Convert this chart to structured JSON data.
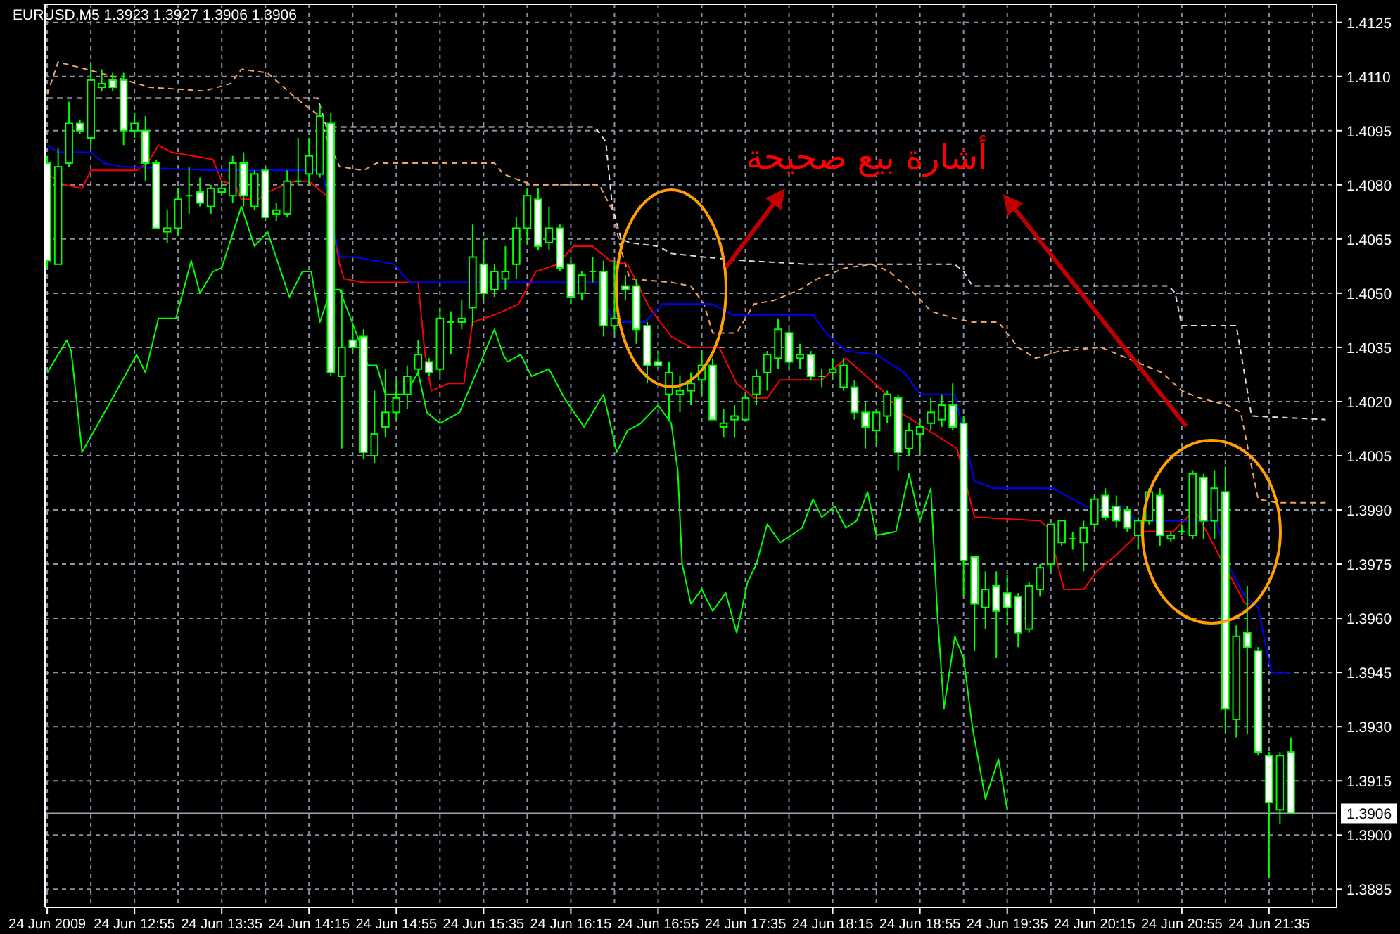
{
  "chart_data": {
    "type": "candlestick",
    "title": "EURUSD,M5  1.3923 1.3927 1.3906 1.3906",
    "annotations": [
      "أشارة بيع صحيحة"
    ],
    "xlim": [
      "2009-06-24T12:14",
      "2009-06-24T22:06"
    ],
    "ylim": [
      1.388,
      1.413
    ],
    "xticks": [
      {
        "value": "2009-06-24T12:15",
        "label": "24 Jun 2009"
      },
      {
        "value": "2009-06-24T12:35",
        "label": null
      },
      {
        "value": "2009-06-24T12:55",
        "label": "24 Jun 12:55"
      },
      {
        "value": "2009-06-24T13:15",
        "label": null
      },
      {
        "value": "2009-06-24T13:35",
        "label": "24 Jun 13:35"
      },
      {
        "value": "2009-06-24T13:55",
        "label": null
      },
      {
        "value": "2009-06-24T14:15",
        "label": "24 Jun 14:15"
      },
      {
        "value": "2009-06-24T14:35",
        "label": null
      },
      {
        "value": "2009-06-24T14:55",
        "label": "24 Jun 14:55"
      },
      {
        "value": "2009-06-24T15:15",
        "label": null
      },
      {
        "value": "2009-06-24T15:35",
        "label": "24 Jun 15:35"
      },
      {
        "value": "2009-06-24T15:55",
        "label": null
      },
      {
        "value": "2009-06-24T16:15",
        "label": "24 Jun 16:15"
      },
      {
        "value": "2009-06-24T16:35",
        "label": null
      },
      {
        "value": "2009-06-24T16:55",
        "label": "24 Jun 16:55"
      },
      {
        "value": "2009-06-24T17:15",
        "label": null
      },
      {
        "value": "2009-06-24T17:35",
        "label": "24 Jun 17:35"
      },
      {
        "value": "2009-06-24T17:55",
        "label": null
      },
      {
        "value": "2009-06-24T18:15",
        "label": "24 Jun 18:15"
      },
      {
        "value": "2009-06-24T18:35",
        "label": null
      },
      {
        "value": "2009-06-24T18:55",
        "label": "24 Jun 18:55"
      },
      {
        "value": "2009-06-24T19:15",
        "label": null
      },
      {
        "value": "2009-06-24T19:35",
        "label": "24 Jun 19:35"
      },
      {
        "value": "2009-06-24T19:55",
        "label": null
      },
      {
        "value": "2009-06-24T20:15",
        "label": "24 Jun 20:15"
      },
      {
        "value": "2009-06-24T20:35",
        "label": null
      },
      {
        "value": "2009-06-24T20:55",
        "label": "24 Jun 20:55"
      },
      {
        "value": "2009-06-24T21:15",
        "label": null
      },
      {
        "value": "2009-06-24T21:35",
        "label": "24 Jun 21:35"
      },
      {
        "value": "2009-06-24T21:55",
        "label": null
      }
    ],
    "yticks": [
      1.3885,
      {
        "value": 1.39,
        "label": "1.3900"
      },
      1.3915,
      {
        "value": 1.393,
        "label": "1.3930"
      },
      1.3945,
      {
        "value": 1.396,
        "label": "1.3960"
      },
      1.3975,
      {
        "value": 1.399,
        "label": "1.3990"
      },
      1.4005,
      {
        "value": 1.402,
        "label": "1.4020"
      },
      1.4035,
      {
        "value": 1.405,
        "label": "1.4050"
      },
      1.4065,
      {
        "value": 1.408,
        "label": "1.4080"
      },
      1.4095,
      {
        "value": 1.411,
        "label": "1.4110"
      },
      1.4125
    ],
    "grid": true,
    "ref_lines": [
      {
        "axis": "y",
        "value": 1.3906,
        "label": "1.3906",
        "color": "#9aa3b4"
      }
    ],
    "x": [
      "2009-06-24T12:15",
      "2009-06-24T12:20",
      "2009-06-24T12:25",
      "2009-06-24T12:30",
      "2009-06-24T12:35",
      "2009-06-24T12:40",
      "2009-06-24T12:45",
      "2009-06-24T12:50",
      "2009-06-24T12:55",
      "2009-06-24T13:00",
      "2009-06-24T13:05",
      "2009-06-24T13:10",
      "2009-06-24T13:15",
      "2009-06-24T13:20",
      "2009-06-24T13:25",
      "2009-06-24T13:30",
      "2009-06-24T13:35",
      "2009-06-24T13:40",
      "2009-06-24T13:45",
      "2009-06-24T13:50",
      "2009-06-24T13:55",
      "2009-06-24T14:00",
      "2009-06-24T14:05",
      "2009-06-24T14:10",
      "2009-06-24T14:15",
      "2009-06-24T14:20",
      "2009-06-24T14:25",
      "2009-06-24T14:30",
      "2009-06-24T14:35",
      "2009-06-24T14:40",
      "2009-06-24T14:45",
      "2009-06-24T14:50",
      "2009-06-24T14:55",
      "2009-06-24T15:00",
      "2009-06-24T15:05",
      "2009-06-24T15:10",
      "2009-06-24T15:15",
      "2009-06-24T15:20",
      "2009-06-24T15:25",
      "2009-06-24T15:30",
      "2009-06-24T15:35",
      "2009-06-24T15:40",
      "2009-06-24T15:45",
      "2009-06-24T15:50",
      "2009-06-24T15:55",
      "2009-06-24T16:00",
      "2009-06-24T16:05",
      "2009-06-24T16:10",
      "2009-06-24T16:15",
      "2009-06-24T16:20",
      "2009-06-24T16:25",
      "2009-06-24T16:30",
      "2009-06-24T16:35",
      "2009-06-24T16:40",
      "2009-06-24T16:45",
      "2009-06-24T16:50",
      "2009-06-24T16:55",
      "2009-06-24T17:00",
      "2009-06-24T17:05",
      "2009-06-24T17:10",
      "2009-06-24T17:15",
      "2009-06-24T17:20",
      "2009-06-24T17:25",
      "2009-06-24T17:30",
      "2009-06-24T17:35",
      "2009-06-24T17:40",
      "2009-06-24T17:45",
      "2009-06-24T17:50",
      "2009-06-24T17:55",
      "2009-06-24T18:00",
      "2009-06-24T18:05",
      "2009-06-24T18:10",
      "2009-06-24T18:15",
      "2009-06-24T18:20",
      "2009-06-24T18:25",
      "2009-06-24T18:30",
      "2009-06-24T18:35",
      "2009-06-24T18:40",
      "2009-06-24T18:45",
      "2009-06-24T18:50",
      "2009-06-24T18:55",
      "2009-06-24T19:00",
      "2009-06-24T19:05",
      "2009-06-24T19:10",
      "2009-06-24T19:15",
      "2009-06-24T19:20",
      "2009-06-24T19:25",
      "2009-06-24T19:30",
      "2009-06-24T19:35",
      "2009-06-24T19:40",
      "2009-06-24T19:45",
      "2009-06-24T19:50",
      "2009-06-24T19:55",
      "2009-06-24T20:00",
      "2009-06-24T20:05",
      "2009-06-24T20:10",
      "2009-06-24T20:15",
      "2009-06-24T20:20",
      "2009-06-24T20:25",
      "2009-06-24T20:30",
      "2009-06-24T20:35",
      "2009-06-24T20:40",
      "2009-06-24T20:45",
      "2009-06-24T20:50",
      "2009-06-24T20:55",
      "2009-06-24T21:00",
      "2009-06-24T21:05",
      "2009-06-24T21:10",
      "2009-06-24T21:15",
      "2009-06-24T21:20",
      "2009-06-24T21:25",
      "2009-06-24T21:30",
      "2009-06-24T21:35",
      "2009-06-24T21:40",
      "2009-06-24T21:45"
    ],
    "ohlc": [
      [
        1.4086,
        1.4088,
        1.4057,
        1.4059
      ],
      [
        1.4058,
        1.409,
        1.4058,
        1.4085
      ],
      [
        1.4086,
        1.4103,
        1.4085,
        1.4097
      ],
      [
        1.4097,
        1.4098,
        1.4094,
        1.4095
      ],
      [
        1.4093,
        1.4114,
        1.409,
        1.4109
      ],
      [
        1.4107,
        1.4112,
        1.4106,
        1.4108
      ],
      [
        1.4109,
        1.4111,
        1.4106,
        1.4107
      ],
      [
        1.4109,
        1.4111,
        1.4091,
        1.4095
      ],
      [
        1.4095,
        1.41,
        1.4093,
        1.4097
      ],
      [
        1.4095,
        1.4099,
        1.4081,
        1.4086
      ],
      [
        1.4086,
        1.4087,
        1.4068,
        1.4068
      ],
      [
        1.4067,
        1.4073,
        1.4064,
        1.4068
      ],
      [
        1.4068,
        1.4079,
        1.4066,
        1.4076
      ],
      [
        1.4077,
        1.4085,
        1.4072,
        1.4077
      ],
      [
        1.4078,
        1.4082,
        1.4074,
        1.4075
      ],
      [
        1.4074,
        1.408,
        1.4072,
        1.4079
      ],
      [
        1.4078,
        1.4081,
        1.4077,
        1.4079
      ],
      [
        1.4077,
        1.4088,
        1.4075,
        1.4086
      ],
      [
        1.4086,
        1.4089,
        1.4074,
        1.4077
      ],
      [
        1.4074,
        1.4084,
        1.4073,
        1.4083
      ],
      [
        1.4084,
        1.4085,
        1.407,
        1.4071
      ],
      [
        1.4072,
        1.4075,
        1.407,
        1.4073
      ],
      [
        1.4072,
        1.4084,
        1.4071,
        1.4081
      ],
      [
        1.4081,
        1.4093,
        1.408,
        1.4081
      ],
      [
        1.4083,
        1.4093,
        1.408,
        1.4088
      ],
      [
        1.4083,
        1.4102,
        1.4082,
        1.4099
      ],
      [
        1.4097,
        1.41,
        1.4027,
        1.4028
      ],
      [
        1.4027,
        1.4051,
        1.4007,
        1.4035
      ],
      [
        1.4037,
        1.4041,
        1.4034,
        1.4035
      ],
      [
        1.4038,
        1.404,
        1.4004,
        1.4006
      ],
      [
        1.4005,
        1.4023,
        1.4003,
        1.4011
      ],
      [
        1.4013,
        1.4029,
        1.401,
        1.4017
      ],
      [
        1.4017,
        1.4026,
        1.4015,
        1.4021
      ],
      [
        1.4022,
        1.403,
        1.4018,
        1.4027
      ],
      [
        1.4029,
        1.4037,
        1.4027,
        1.4033
      ],
      [
        1.4031,
        1.4032,
        1.4027,
        1.4028
      ],
      [
        1.4029,
        1.4046,
        1.4027,
        1.4043
      ],
      [
        1.4042,
        1.4045,
        1.4033,
        1.4042
      ],
      [
        1.4042,
        1.4048,
        1.404,
        1.4043
      ],
      [
        1.4046,
        1.4069,
        1.4041,
        1.406
      ],
      [
        1.4058,
        1.4065,
        1.4048,
        1.405
      ],
      [
        1.4051,
        1.4058,
        1.4049,
        1.4056
      ],
      [
        1.4054,
        1.4063,
        1.4051,
        1.4056
      ],
      [
        1.4058,
        1.4071,
        1.4054,
        1.4068
      ],
      [
        1.4068,
        1.4079,
        1.4064,
        1.4077
      ],
      [
        1.4076,
        1.4079,
        1.4062,
        1.4063
      ],
      [
        1.4064,
        1.4074,
        1.4062,
        1.4068
      ],
      [
        1.4068,
        1.4069,
        1.4056,
        1.4057
      ],
      [
        1.4058,
        1.4059,
        1.4047,
        1.4049
      ],
      [
        1.405,
        1.4056,
        1.4048,
        1.4055
      ],
      [
        1.4056,
        1.406,
        1.4053,
        1.4056
      ],
      [
        1.4056,
        1.4059,
        1.4038,
        1.4041
      ],
      [
        1.4041,
        1.4059,
        1.4039,
        1.4043
      ],
      [
        1.4052,
        1.4055,
        1.4048,
        1.4051
      ],
      [
        1.4052,
        1.4054,
        1.4036,
        1.404
      ],
      [
        1.4041,
        1.4042,
        1.4025,
        1.403
      ],
      [
        1.4031,
        1.4034,
        1.4029,
        1.403
      ],
      [
        1.4022,
        1.4031,
        1.4015,
        1.4028
      ],
      [
        1.4022,
        1.4027,
        1.4017,
        1.4023
      ],
      [
        1.4023,
        1.4028,
        1.4019,
        1.4025
      ],
      [
        1.4026,
        1.4034,
        1.4022,
        1.403
      ],
      [
        1.403,
        1.4032,
        1.4015,
        1.4015
      ],
      [
        1.4013,
        1.4018,
        1.401,
        1.4014
      ],
      [
        1.4015,
        1.4019,
        1.401,
        1.4016
      ],
      [
        1.4015,
        1.4022,
        1.4015,
        1.4021
      ],
      [
        1.4022,
        1.4029,
        1.4019,
        1.4027
      ],
      [
        1.4028,
        1.4034,
        1.4023,
        1.4033
      ],
      [
        1.4032,
        1.4043,
        1.4029,
        1.404
      ],
      [
        1.4039,
        1.404,
        1.4029,
        1.4031
      ],
      [
        1.4032,
        1.4036,
        1.4029,
        1.4033
      ],
      [
        1.4033,
        1.4034,
        1.4026,
        1.4027
      ],
      [
        1.4027,
        1.4029,
        1.4024,
        1.4027
      ],
      [
        1.4028,
        1.4032,
        1.4027,
        1.4029
      ],
      [
        1.4024,
        1.4032,
        1.4023,
        1.403
      ],
      [
        1.4024,
        1.4026,
        1.4015,
        1.4017
      ],
      [
        1.4017,
        1.402,
        1.4007,
        1.4013
      ],
      [
        1.4012,
        1.4018,
        1.4008,
        1.4017
      ],
      [
        1.4016,
        1.4023,
        1.4014,
        1.4022
      ],
      [
        1.4021,
        1.4022,
        1.4001,
        1.4006
      ],
      [
        1.4007,
        1.4014,
        1.4005,
        1.4012
      ],
      [
        1.4011,
        1.4015,
        1.4006,
        1.4013
      ],
      [
        1.4014,
        1.4021,
        1.4012,
        1.4017
      ],
      [
        1.4015,
        1.4022,
        1.4013,
        1.4019
      ],
      [
        1.4019,
        1.4025,
        1.4012,
        1.4013
      ],
      [
        1.4014,
        1.4016,
        1.3966,
        1.3976
      ],
      [
        1.3977,
        1.3977,
        1.3951,
        1.3964
      ],
      [
        1.3963,
        1.3973,
        1.3957,
        1.3968
      ],
      [
        1.3969,
        1.3973,
        1.3949,
        1.3962
      ],
      [
        1.3967,
        1.3972,
        1.3958,
        1.3963
      ],
      [
        1.3966,
        1.3967,
        1.3952,
        1.3956
      ],
      [
        1.3957,
        1.397,
        1.3956,
        1.3969
      ],
      [
        1.3968,
        1.3975,
        1.3966,
        1.3974
      ],
      [
        1.3975,
        1.3986,
        1.3973,
        1.3986
      ],
      [
        1.3981,
        1.3987,
        1.398,
        1.3987
      ],
      [
        1.3982,
        1.3984,
        1.3979,
        1.3982
      ],
      [
        1.3981,
        1.3987,
        1.3973,
        1.3985
      ],
      [
        1.3986,
        1.3994,
        1.3985,
        1.3993
      ],
      [
        1.3994,
        1.3996,
        1.3987,
        1.3988
      ],
      [
        1.3991,
        1.3994,
        1.3985,
        1.3987
      ],
      [
        1.399,
        1.3991,
        1.3984,
        1.3985
      ],
      [
        1.3983,
        1.3988,
        1.3979,
        1.3987
      ],
      [
        1.3987,
        1.3996,
        1.3986,
        1.3995
      ],
      [
        1.3994,
        1.3996,
        1.398,
        1.3983
      ],
      [
        1.3982,
        1.3984,
        1.3981,
        1.3983
      ],
      [
        1.3984,
        1.3986,
        1.3983,
        1.3984
      ],
      [
        1.3983,
        1.4001,
        1.3982,
        1.4
      ],
      [
        1.3999,
        1.4,
        1.3982,
        1.3987
      ],
      [
        1.3987,
        1.4001,
        1.3982,
        1.3996
      ],
      [
        1.3995,
        1.4002,
        1.3929,
        1.3935
      ],
      [
        1.3932,
        1.3958,
        1.3927,
        1.3955
      ],
      [
        1.3956,
        1.3969,
        1.3928,
        1.3952
      ],
      [
        1.3951,
        1.3952,
        1.3922,
        1.3923
      ],
      [
        1.3922,
        1.3923,
        1.3888,
        1.3909
      ],
      [
        1.3907,
        1.3923,
        1.3903,
        1.3922
      ],
      [
        1.3923,
        1.3927,
        1.3906,
        1.3906
      ]
    ],
    "series": [
      {
        "type": "line",
        "color": "#f4a460",
        "line_style": "dashed",
        "x": [
          "2009-06-24T12:15",
          "2009-06-24T12:20",
          "2009-06-24T12:33",
          "2009-06-24T12:45",
          "2009-06-24T13:02",
          "2009-06-24T13:27",
          "2009-06-24T13:39",
          "2009-06-24T13:44",
          "2009-06-24T13:56",
          "2009-06-24T14:09",
          "2009-06-24T14:20",
          "2009-06-24T14:23",
          "2009-06-24T14:29",
          "2009-06-24T14:40",
          "2009-06-24T14:46",
          "2009-06-24T15:11",
          "2009-06-24T15:40",
          "2009-06-24T15:44",
          "2009-06-24T15:57",
          "2009-06-24T16:28",
          "2009-06-24T16:34",
          "2009-06-24T16:38",
          "2009-06-24T16:42",
          "2009-06-24T17:01",
          "2009-06-24T17:10",
          "2009-06-24T17:16",
          "2009-06-24T17:20",
          "2009-06-24T17:31",
          "2009-06-24T17:39",
          "2009-06-24T17:48",
          "2009-06-24T18:00",
          "2009-06-24T18:08",
          "2009-06-24T18:21",
          "2009-06-24T18:33",
          "2009-06-24T18:41",
          "2009-06-24T18:54",
          "2009-06-24T19:00",
          "2009-06-24T19:11",
          "2009-06-24T19:19",
          "2009-06-24T19:31",
          "2009-06-24T19:40",
          "2009-06-24T19:48",
          "2009-06-24T19:59",
          "2009-06-24T20:18",
          "2009-06-24T20:26",
          "2009-06-24T20:38",
          "2009-06-24T20:46",
          "2009-06-24T20:55",
          "2009-06-24T21:03",
          "2009-06-24T21:16",
          "2009-06-24T21:22",
          "2009-06-24T21:30",
          "2009-06-24T21:39",
          "2009-06-24T22:01"
        ],
        "values": [
          1.4105,
          1.4114,
          1.4112,
          1.411,
          1.4107,
          1.4106,
          1.4108,
          1.4112,
          1.4111,
          1.4104,
          1.4099,
          1.4093,
          1.4085,
          1.4084,
          1.4086,
          1.4086,
          1.4086,
          1.4083,
          1.408,
          1.408,
          1.4073,
          1.4062,
          1.4054,
          1.4053,
          1.4052,
          1.4047,
          1.4039,
          1.4039,
          1.4047,
          1.4048,
          1.4051,
          1.4054,
          1.4057,
          1.4058,
          1.4056,
          1.4049,
          1.4045,
          1.4043,
          1.4042,
          1.4042,
          1.4035,
          1.4032,
          1.4034,
          1.4035,
          1.4033,
          1.403,
          1.4028,
          1.4023,
          1.4021,
          1.4019,
          1.4017,
          1.3993,
          1.3992,
          1.3992
        ]
      },
      {
        "type": "line",
        "color": "#e6d8e6",
        "line_style": "dashed",
        "x": [
          "2009-06-24T12:15",
          "2009-06-24T14:19",
          "2009-06-24T14:23",
          "2009-06-24T16:26",
          "2009-06-24T16:31",
          "2009-06-24T16:34",
          "2009-06-24T16:38",
          "2009-06-24T16:42",
          "2009-06-24T16:55",
          "2009-06-24T17:01",
          "2009-06-24T17:16",
          "2009-06-24T17:35",
          "2009-06-24T18:04",
          "2009-06-24T19:11",
          "2009-06-24T19:15",
          "2009-06-24T19:19",
          "2009-06-24T20:49",
          "2009-06-24T20:52",
          "2009-06-24T20:55",
          "2009-06-24T21:20",
          "2009-06-24T21:27",
          "2009-06-24T22:01"
        ],
        "values": [
          1.4104,
          1.4104,
          1.4096,
          1.4096,
          1.4092,
          1.4074,
          1.4065,
          1.4064,
          1.4063,
          1.4061,
          1.406,
          1.4059,
          1.4058,
          1.4058,
          1.4056,
          1.4052,
          1.4052,
          1.405,
          1.4041,
          1.4041,
          1.4016,
          1.4015
        ]
      },
      {
        "type": "line",
        "color": "#00ff00",
        "x": [
          "2009-06-24T12:15",
          "2009-06-24T12:24",
          "2009-06-24T12:26",
          "2009-06-24T12:31",
          "2009-06-24T12:45",
          "2009-06-24T12:56",
          "2009-06-24T13:00",
          "2009-06-24T13:06",
          "2009-06-24T13:14",
          "2009-06-24T13:21",
          "2009-06-24T13:25",
          "2009-06-24T13:31",
          "2009-06-24T13:35",
          "2009-06-24T13:44",
          "2009-06-24T13:50",
          "2009-06-24T13:56",
          "2009-06-24T14:06",
          "2009-06-24T14:12",
          "2009-06-24T14:16",
          "2009-06-24T14:20",
          "2009-06-24T14:25",
          "2009-06-24T14:29",
          "2009-06-24T14:36",
          "2009-06-24T14:42",
          "2009-06-24T14:46",
          "2009-06-24T14:50",
          "2009-06-24T14:59",
          "2009-06-24T15:05",
          "2009-06-24T15:09",
          "2009-06-24T15:15",
          "2009-06-24T15:24",
          "2009-06-24T15:40",
          "2009-06-24T15:44",
          "2009-06-24T15:46",
          "2009-06-24T15:52",
          "2009-06-24T15:57",
          "2009-06-24T16:05",
          "2009-06-24T16:12",
          "2009-06-24T16:21",
          "2009-06-24T16:30",
          "2009-06-24T16:36",
          "2009-06-24T16:41",
          "2009-06-24T16:47",
          "2009-06-24T16:55",
          "2009-06-24T17:01",
          "2009-06-24T17:04",
          "2009-06-24T17:06",
          "2009-06-24T17:10",
          "2009-06-24T17:15",
          "2009-06-24T17:20",
          "2009-06-24T17:26",
          "2009-06-24T17:31",
          "2009-06-24T17:36",
          "2009-06-24T17:40",
          "2009-06-24T17:45",
          "2009-06-24T17:51",
          "2009-06-24T17:56",
          "2009-06-24T18:01",
          "2009-06-24T18:06",
          "2009-06-24T18:10",
          "2009-06-24T18:16",
          "2009-06-24T18:21",
          "2009-06-24T18:26",
          "2009-06-24T18:31",
          "2009-06-24T18:35",
          "2009-06-24T18:44",
          "2009-06-24T18:50",
          "2009-06-24T18:55",
          "2009-06-24T19:00",
          "2009-06-24T19:03",
          "2009-06-24T19:06",
          "2009-06-24T19:11",
          "2009-06-24T19:15",
          "2009-06-24T19:19",
          "2009-06-24T19:25",
          "2009-06-24T19:31",
          "2009-06-24T19:35"
        ],
        "values": [
          1.4028,
          1.4037,
          1.4034,
          1.4006,
          1.4021,
          1.4033,
          1.4028,
          1.4043,
          1.4043,
          1.4059,
          1.405,
          1.4056,
          1.4057,
          1.4074,
          1.4063,
          1.4067,
          1.4049,
          1.4056,
          1.4056,
          1.4042,
          1.4051,
          1.4051,
          1.404,
          1.403,
          1.403,
          1.4022,
          1.4022,
          1.4028,
          1.4017,
          1.4014,
          1.4017,
          1.404,
          1.4033,
          1.4031,
          1.4033,
          1.4027,
          1.4029,
          1.4021,
          1.4013,
          1.4022,
          1.4006,
          1.4012,
          1.4014,
          1.4019,
          1.4014,
          1.4001,
          1.3975,
          1.3964,
          1.3968,
          1.3962,
          1.3967,
          1.3956,
          1.397,
          1.3975,
          1.3986,
          1.3981,
          1.3983,
          1.3985,
          1.3993,
          1.3988,
          1.3991,
          1.3985,
          1.3987,
          1.3995,
          1.3983,
          1.3984,
          1.4,
          1.3987,
          1.3996,
          1.3961,
          1.3935,
          1.3955,
          1.3949,
          1.393,
          1.391,
          1.3921,
          1.3907
        ]
      },
      {
        "type": "line",
        "color": "#ff0000",
        "x": [
          "2009-06-24T12:15",
          "2009-06-24T12:23",
          "2009-06-24T12:31",
          "2009-06-24T12:35",
          "2009-06-24T12:56",
          "2009-06-24T13:01",
          "2009-06-24T13:06",
          "2009-06-24T13:12",
          "2009-06-24T13:31",
          "2009-06-24T13:35",
          "2009-06-24T13:41",
          "2009-06-24T13:44",
          "2009-06-24T13:52",
          "2009-06-24T13:56",
          "2009-06-24T14:04",
          "2009-06-24T14:09",
          "2009-06-24T14:15",
          "2009-06-24T14:23",
          "2009-06-24T14:29",
          "2009-06-24T14:31",
          "2009-06-24T14:40",
          "2009-06-24T15:05",
          "2009-06-24T15:08",
          "2009-06-24T15:11",
          "2009-06-24T15:19",
          "2009-06-24T15:26",
          "2009-06-24T15:30",
          "2009-06-24T15:40",
          "2009-06-24T15:44",
          "2009-06-24T15:51",
          "2009-06-24T15:59",
          "2009-06-24T16:09",
          "2009-06-24T16:16",
          "2009-06-24T16:25",
          "2009-06-24T16:33",
          "2009-06-24T16:41",
          "2009-06-24T16:51",
          "2009-06-24T17:01",
          "2009-06-24T17:10",
          "2009-06-24T17:23",
          "2009-06-24T17:31",
          "2009-06-24T17:39",
          "2009-06-24T17:45",
          "2009-06-24T17:51",
          "2009-06-24T18:10",
          "2009-06-24T18:21",
          "2009-06-24T18:38",
          "2009-06-24T18:46",
          "2009-06-24T19:12",
          "2009-06-24T19:20",
          "2009-06-24T19:50",
          "2009-06-24T19:54",
          "2009-06-24T20:01",
          "2009-06-24T20:10",
          "2009-06-24T20:16",
          "2009-06-24T20:24",
          "2009-06-24T20:36",
          "2009-06-24T20:51",
          "2009-06-24T21:01",
          "2009-06-24T21:24",
          "2009-06-24T21:26"
        ],
        "values": [
          1.4083,
          1.408,
          1.4079,
          1.4084,
          1.4084,
          1.4086,
          1.4091,
          1.4089,
          1.4087,
          1.4081,
          1.408,
          1.4076,
          1.4076,
          1.4078,
          1.408,
          1.4081,
          1.4081,
          1.4077,
          1.4058,
          1.4054,
          1.4053,
          1.4053,
          1.4034,
          1.4023,
          1.4025,
          1.4025,
          1.4042,
          1.4044,
          1.4045,
          1.4047,
          1.4056,
          1.4058,
          1.4063,
          1.4063,
          1.4059,
          1.4058,
          1.4046,
          1.4038,
          1.4035,
          1.4035,
          1.4025,
          1.4021,
          1.4021,
          1.4026,
          1.4026,
          1.4032,
          1.4023,
          1.4017,
          1.4007,
          1.3988,
          1.3987,
          1.3985,
          1.3968,
          1.3968,
          1.3973,
          1.3977,
          1.3984,
          1.3984,
          1.399,
          1.3964,
          1.3964
        ]
      },
      {
        "type": "line",
        "color": "#0000ff",
        "x": [
          "2009-06-24T12:15",
          "2009-06-24T12:20",
          "2009-06-24T12:35",
          "2009-06-24T12:41",
          "2009-06-24T12:49",
          "2009-06-24T13:31",
          "2009-06-24T14:21",
          "2009-06-24T14:29",
          "2009-06-24T14:36",
          "2009-06-24T14:54",
          "2009-06-24T15:01",
          "2009-06-24T16:28",
          "2009-06-24T16:34",
          "2009-06-24T16:49",
          "2009-06-24T16:57",
          "2009-06-24T17:20",
          "2009-06-24T17:29",
          "2009-06-24T18:06",
          "2009-06-24T18:12",
          "2009-06-24T18:21",
          "2009-06-24T18:35",
          "2009-06-24T18:48",
          "2009-06-24T18:55",
          "2009-06-24T19:11",
          "2009-06-24T19:20",
          "2009-06-24T19:29",
          "2009-06-24T19:56",
          "2009-06-24T20:11",
          "2009-06-24T20:27",
          "2009-06-24T20:34",
          "2009-06-24T21:11",
          "2009-06-24T21:16",
          "2009-06-24T21:24",
          "2009-06-24T21:30",
          "2009-06-24T21:36",
          "2009-06-24T21:45"
        ],
        "values": [
          1.4091,
          1.4089,
          1.4089,
          1.4086,
          1.4085,
          1.4084,
          1.4084,
          1.406,
          1.406,
          1.4058,
          1.4053,
          1.4053,
          1.4042,
          1.4042,
          1.4047,
          1.4047,
          1.4044,
          1.4044,
          1.4039,
          1.4034,
          1.4033,
          1.4028,
          1.4022,
          1.4022,
          1.3998,
          1.3996,
          1.3996,
          1.3991,
          1.3991,
          1.3987,
          1.3987,
          1.3975,
          1.3966,
          1.3963,
          1.3945,
          1.3945
        ]
      }
    ]
  }
}
